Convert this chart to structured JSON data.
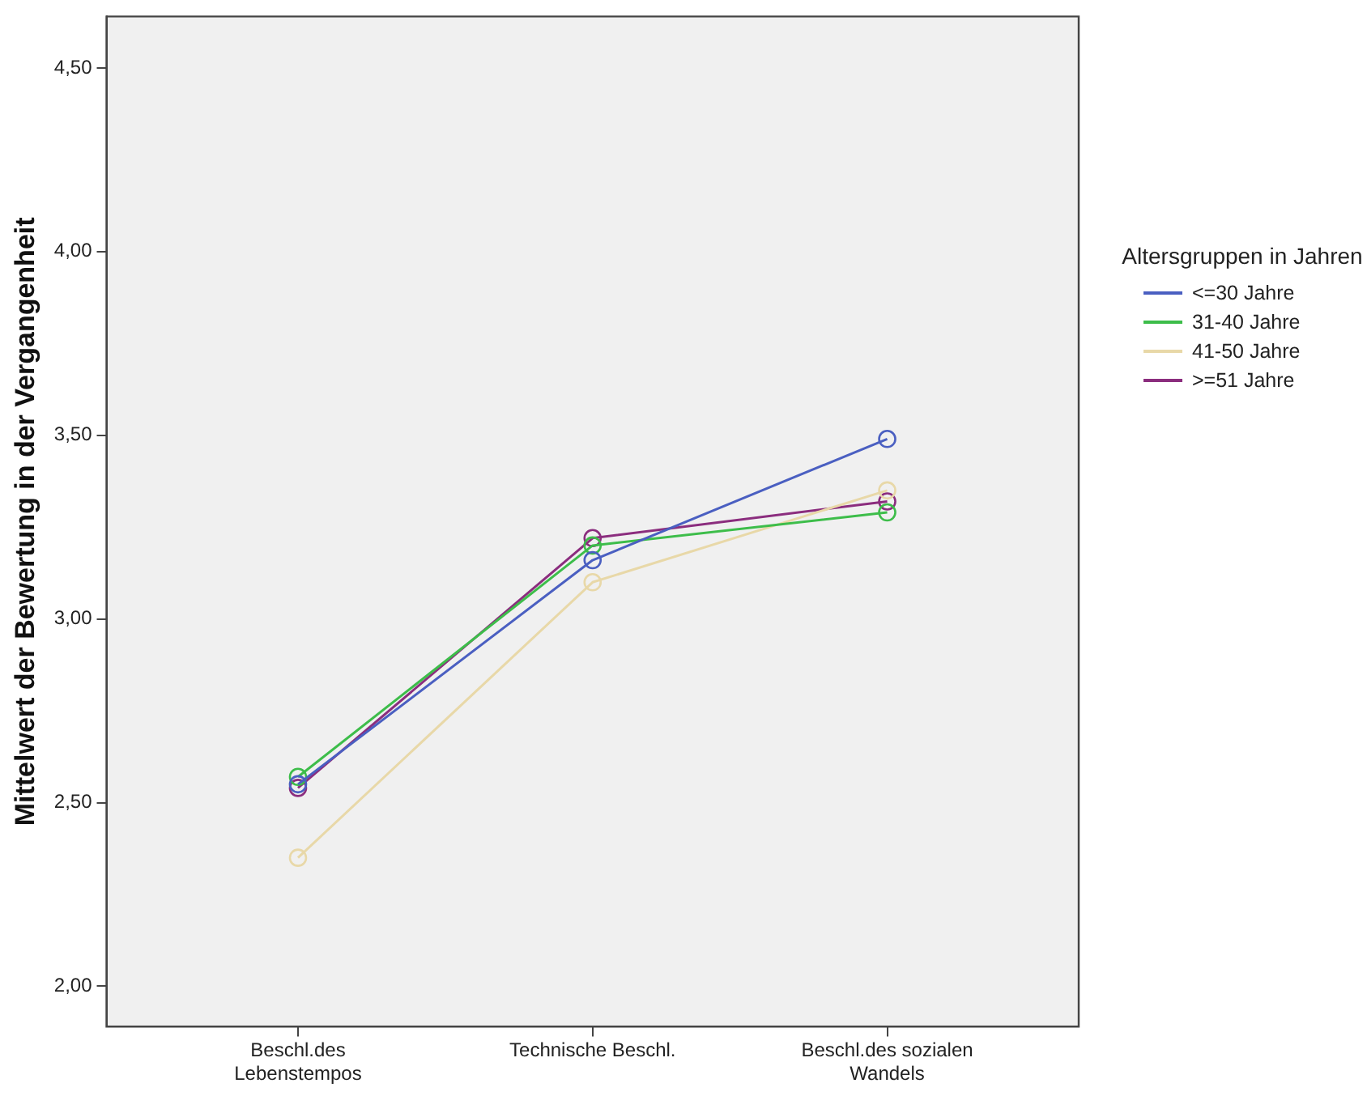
{
  "chart_data": {
    "type": "line",
    "ylabel": "Mittelwert der Bewertung in der Vergangenheit",
    "legend_title": "Altersgruppen in Jahren",
    "categories": [
      "Beschl.des Lebenstempos",
      "Technische Beschl.",
      "Beschl.des sozialen Wandels"
    ],
    "series": [
      {
        "name": "<=30 Jahre",
        "color": "#4a5fc1",
        "values": [
          2.55,
          3.16,
          3.49
        ]
      },
      {
        "name": "31-40 Jahre",
        "color": "#3dbd4a",
        "values": [
          2.57,
          3.2,
          3.29
        ]
      },
      {
        "name": "41-50 Jahre",
        "color": "#e8d8a8",
        "values": [
          2.35,
          3.1,
          3.35
        ]
      },
      {
        "name": ">=51 Jahre",
        "color": "#8b2d7e",
        "values": [
          2.54,
          3.22,
          3.32
        ]
      }
    ],
    "ylim": [
      1.89,
      4.64
    ],
    "yticks": [
      {
        "value": 2,
        "label": "2,00"
      },
      {
        "value": 2.5,
        "label": "2,50"
      },
      {
        "value": 3,
        "label": "3,00"
      },
      {
        "value": 3.5,
        "label": "3,50"
      },
      {
        "value": 4,
        "label": "4,00"
      },
      {
        "value": 4.5,
        "label": "4,50"
      }
    ],
    "grid": false,
    "legend": "right",
    "marker": "circle",
    "line_style": "solid"
  }
}
